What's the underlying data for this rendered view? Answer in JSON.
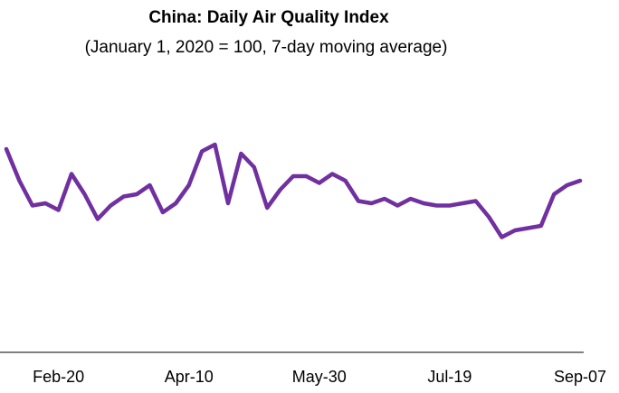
{
  "chart_data": {
    "type": "line",
    "title": "China: Daily Air Quality Index",
    "subtitle": "(January 1, 2020 = 100, 7-day moving average)",
    "categories": [
      null,
      null,
      null,
      null,
      "Feb-20",
      null,
      null,
      null,
      null,
      null,
      null,
      null,
      null,
      null,
      "Apr-10",
      null,
      null,
      null,
      null,
      null,
      null,
      null,
      null,
      null,
      "May-30",
      null,
      null,
      null,
      null,
      null,
      null,
      null,
      null,
      null,
      "Jul-19",
      null,
      null,
      null,
      null,
      null,
      null,
      null,
      null,
      null,
      "Sep-07"
    ],
    "series": [
      {
        "name": "China",
        "color": "#7030a0",
        "values": [
          90,
          76,
          65,
          66,
          63,
          79,
          70,
          59,
          65,
          69,
          70,
          74,
          62,
          66,
          74,
          89,
          92,
          66,
          88,
          82,
          64,
          72,
          78,
          78,
          75,
          79,
          76,
          67,
          66,
          68,
          65,
          68,
          66,
          65,
          65,
          66,
          67,
          60,
          51,
          54,
          55,
          56,
          70,
          74,
          76
        ]
      }
    ],
    "ylim": [
      0,
      100
    ]
  }
}
